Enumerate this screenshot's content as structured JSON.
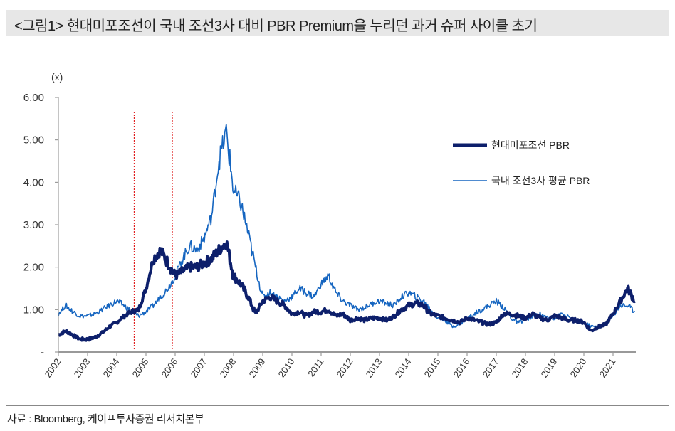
{
  "title": "<그림1> 현대미포조선이 국내 조선3사 대비 PBR Premium을 누리던 과거 슈퍼 사이클 초기",
  "source": "자료 : Bloomberg, 케이프투자증권 리서치본부",
  "chart_data": {
    "type": "line",
    "title": "<그림1> 현대미포조선이 국내 조선3사 대비 PBR Premium을 누리던 과거 슈퍼 사이클 초기",
    "ylabel": "(x)",
    "xlabel": "",
    "ylim": [
      0,
      6
    ],
    "xlim": [
      2002,
      2021.8
    ],
    "y_ticks": [
      "-",
      "1.00",
      "2.00",
      "3.00",
      "4.00",
      "5.00",
      "6.00"
    ],
    "x_ticks": [
      "2002",
      "2003",
      "2004",
      "2005",
      "2006",
      "2007",
      "2008",
      "2009",
      "2010",
      "2011",
      "2012",
      "2013",
      "2014",
      "2015",
      "2016",
      "2017",
      "2018",
      "2019",
      "2020",
      "2021"
    ],
    "legend_position": "right",
    "vlines": [
      2004.6,
      2005.9
    ],
    "vline_color": "#e02020",
    "x_step": 0.25,
    "x_start": 2002,
    "series": [
      {
        "name": "현대미포조선 PBR",
        "color": "#0d1f6b",
        "values": [
          0.4,
          0.5,
          0.4,
          0.3,
          0.3,
          0.35,
          0.45,
          0.6,
          0.7,
          0.85,
          0.95,
          1.0,
          1.5,
          2.2,
          2.4,
          2.1,
          1.8,
          1.9,
          2.0,
          2.0,
          2.1,
          2.2,
          2.4,
          2.6,
          1.8,
          1.6,
          1.3,
          0.9,
          1.2,
          1.3,
          1.2,
          1.1,
          0.9,
          0.95,
          0.85,
          0.95,
          0.95,
          1.0,
          0.85,
          0.9,
          0.75,
          0.8,
          0.75,
          0.8,
          0.8,
          0.75,
          0.85,
          1.0,
          1.1,
          1.15,
          1.1,
          0.9,
          0.85,
          0.8,
          0.75,
          0.7,
          0.8,
          0.75,
          0.7,
          0.65,
          0.7,
          0.9,
          0.9,
          0.85,
          0.8,
          0.9,
          0.8,
          0.75,
          0.85,
          0.8,
          0.75,
          0.75,
          0.7,
          0.5,
          0.6,
          0.65,
          0.9,
          1.2,
          1.5,
          1.2
        ]
      },
      {
        "name": "국내 조선3사 평균 PBR",
        "color": "#1565c0",
        "values": [
          0.9,
          1.1,
          0.95,
          0.85,
          0.85,
          0.9,
          1.0,
          1.1,
          1.2,
          1.1,
          0.95,
          0.85,
          0.95,
          1.1,
          1.3,
          1.5,
          1.8,
          2.2,
          2.5,
          2.4,
          2.7,
          3.2,
          4.5,
          5.2,
          3.8,
          3.5,
          2.8,
          2.0,
          1.3,
          1.4,
          1.3,
          1.2,
          1.3,
          1.5,
          1.4,
          1.3,
          1.6,
          1.8,
          1.4,
          1.2,
          1.1,
          1.0,
          1.05,
          1.15,
          1.2,
          1.15,
          1.1,
          1.3,
          1.4,
          1.3,
          1.2,
          1.0,
          0.8,
          0.75,
          0.6,
          0.65,
          0.8,
          0.9,
          1.0,
          1.1,
          1.2,
          1.05,
          0.8,
          0.7,
          0.75,
          0.85,
          0.9,
          0.8,
          0.8,
          0.9,
          0.8,
          0.75,
          0.7,
          0.6,
          0.6,
          0.65,
          0.85,
          1.1,
          1.1,
          0.95
        ]
      }
    ]
  }
}
